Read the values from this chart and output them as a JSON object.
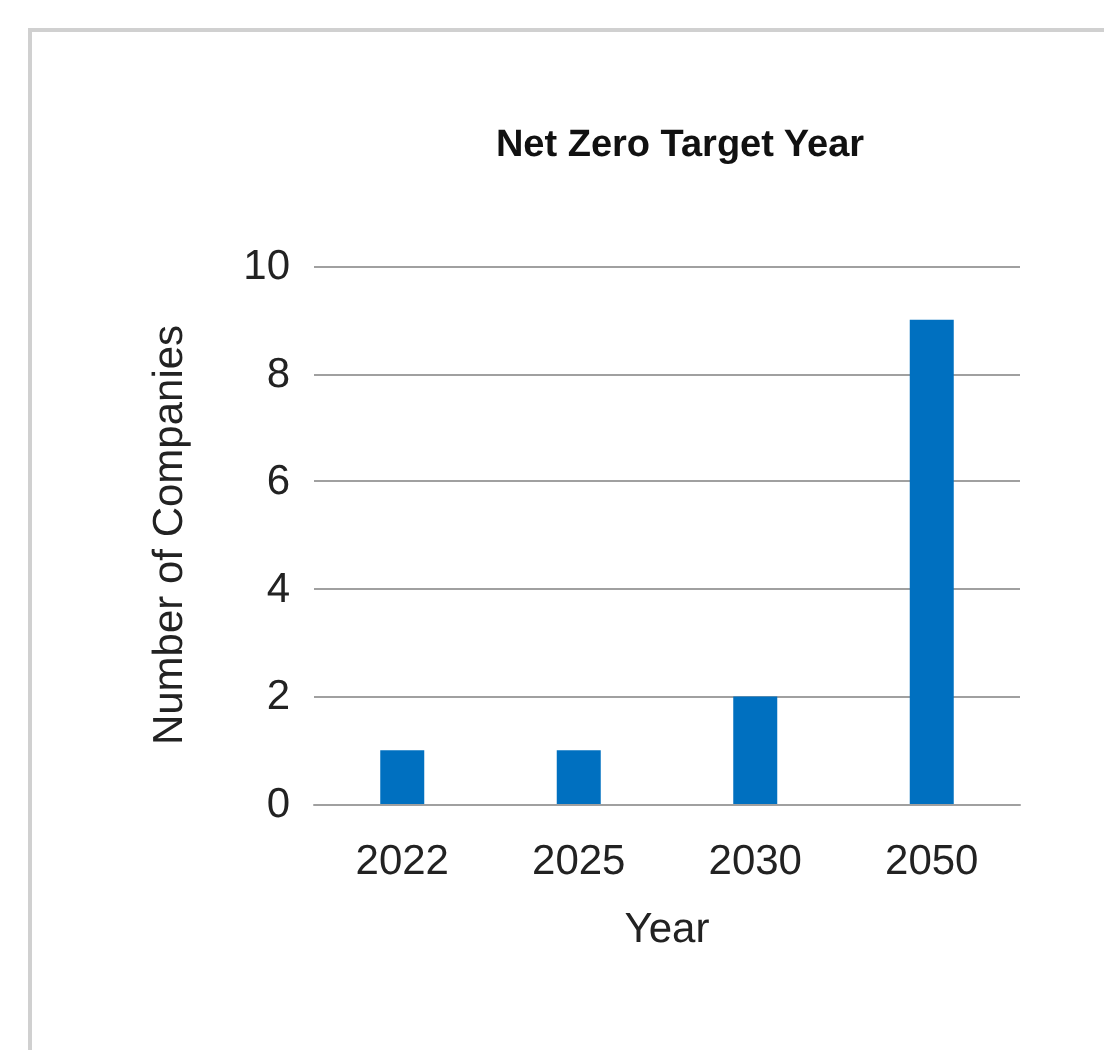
{
  "chart_data": {
    "type": "bar",
    "title": "Net Zero Target Year",
    "xlabel": "Year",
    "ylabel": "Number of Companies",
    "categories": [
      "2022",
      "2025",
      "2030",
      "2050"
    ],
    "values": [
      1,
      1,
      2,
      9
    ],
    "color": "#0070c0",
    "ylim": [
      0,
      10
    ],
    "yticks": [
      0,
      2,
      4,
      6,
      8,
      10
    ],
    "grid": "y"
  }
}
